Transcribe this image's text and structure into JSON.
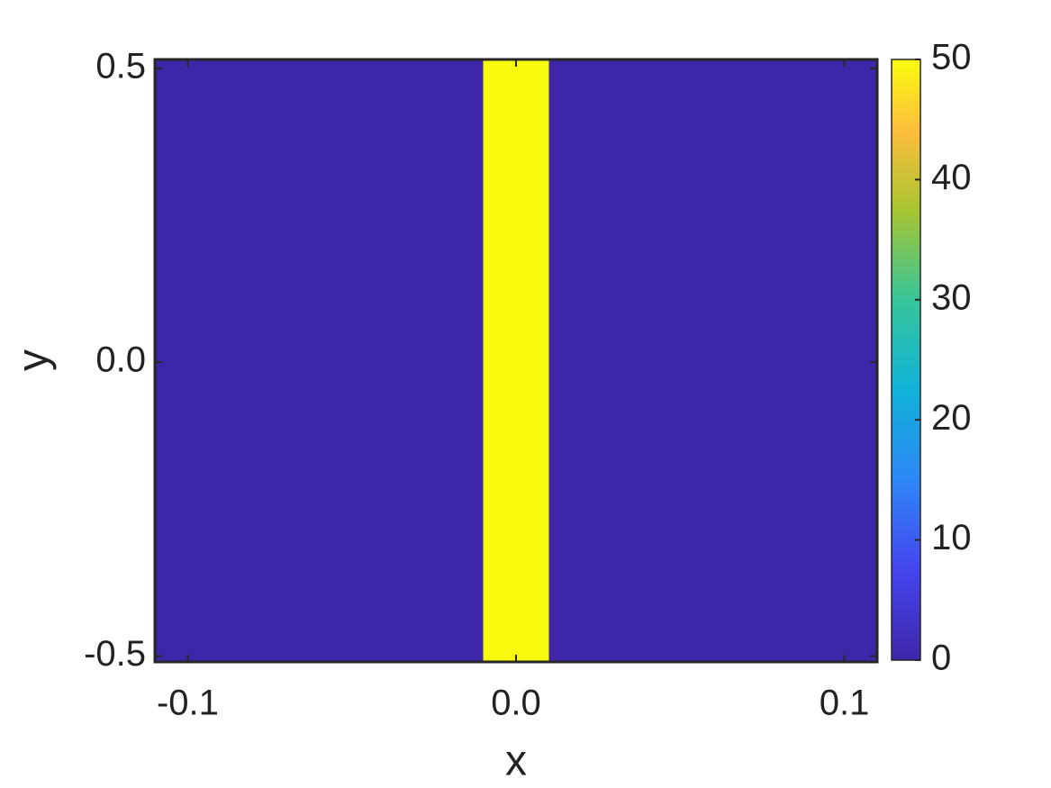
{
  "chart_data": {
    "type": "heatmap",
    "xlabel": "x",
    "ylabel": "y",
    "x_edges": [
      -0.11,
      -0.01,
      0.01,
      0.11
    ],
    "values": [
      0,
      50,
      0
    ],
    "xlim": [
      -0.11,
      0.11
    ],
    "xticks": [
      -0.1,
      {
        "value": 0,
        "label": "0.0"
      },
      0.1
    ],
    "ylim": [
      -0.51,
      0.515
    ],
    "yticks": [
      -0.5,
      {
        "value": 0,
        "label": "0.0"
      },
      0.5
    ],
    "colormap": "parula",
    "clim": [
      0,
      50
    ],
    "cticks": [
      0,
      10,
      20,
      30,
      40,
      50
    ]
  }
}
